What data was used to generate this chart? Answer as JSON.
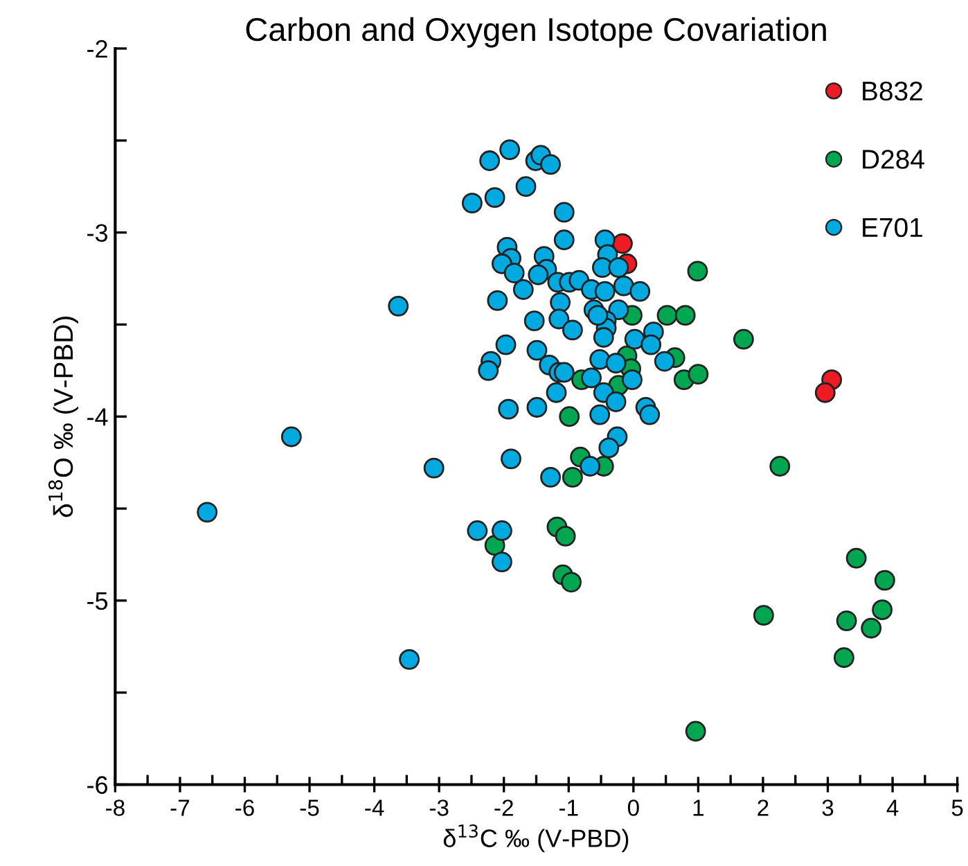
{
  "chart_data": {
    "type": "scatter",
    "title": "Carbon and Oxygen Isotope Covariation",
    "xlabel": "δ$^{13}$C ‰ (V-PBD)",
    "ylabel": "δ$^{18}$O ‰ (V-PBD)",
    "xlim": [
      -8,
      5
    ],
    "ylim": [
      -6,
      -2
    ],
    "xticks": [
      -8,
      -7,
      -6,
      -5,
      -4,
      -3,
      -2,
      -1,
      0,
      1,
      2,
      3,
      4,
      5
    ],
    "yticks": [
      -6,
      -5,
      -4,
      -3,
      -2
    ],
    "grid": false,
    "legend": "top right",
    "marker": "circle",
    "series": [
      {
        "name": "B832",
        "color": "#ed1c24",
        "x": [
          -0.17,
          -0.1,
          3.06,
          2.96
        ],
        "values": [
          -3.06,
          -3.17,
          -3.8,
          -3.87
        ]
      },
      {
        "name": "D284",
        "color": "#00a650",
        "x": [
          0.78,
          1.0,
          2.26,
          3.44,
          3.88,
          3.84,
          3.29,
          3.67,
          3.25,
          2.01,
          0.96,
          0.99,
          0.52,
          0.8,
          1.7,
          -0.02,
          -0.1,
          -0.04,
          0.64,
          -0.8,
          -0.23,
          -0.99,
          -0.82,
          -0.46,
          -0.94,
          -1.18,
          -1.05,
          -2.14,
          -1.09,
          -0.96
        ],
        "values": [
          -3.8,
          -3.77,
          -4.27,
          -4.77,
          -4.89,
          -5.05,
          -5.11,
          -5.15,
          -5.31,
          -5.08,
          -5.71,
          -3.21,
          -3.45,
          -3.45,
          -3.58,
          -3.45,
          -3.67,
          -3.74,
          -3.68,
          -3.8,
          -3.83,
          -4.0,
          -4.22,
          -4.27,
          -4.33,
          -4.6,
          -4.65,
          -4.7,
          -4.86,
          -4.9
        ]
      },
      {
        "name": "E701",
        "color": "#00a9e0",
        "x": [
          -3.63,
          -5.28,
          -3.08,
          -6.58,
          -3.46,
          -2.22,
          -1.91,
          -1.51,
          -1.43,
          -1.28,
          -1.66,
          -2.14,
          -2.49,
          -1.07,
          -1.07,
          -1.95,
          -1.89,
          -2.03,
          -1.84,
          -1.38,
          -1.34,
          -1.47,
          -1.17,
          -0.99,
          -1.7,
          -2.1,
          -1.13,
          -1.53,
          -1.15,
          -0.94,
          -1.97,
          -1.49,
          -0.44,
          -0.4,
          -0.48,
          -0.23,
          -0.84,
          -0.65,
          -0.44,
          -0.15,
          0.1,
          -0.61,
          -0.23,
          -0.42,
          -0.42,
          -0.46,
          -0.55,
          0.02,
          0.31,
          0.27,
          0.48,
          -1.3,
          -1.15,
          -1.07,
          -0.52,
          -0.27,
          -0.65,
          -0.02,
          -1.19,
          -0.46,
          -0.27,
          -1.49,
          -0.52,
          0.19,
          0.25,
          -0.25,
          -0.38,
          -0.67,
          -1.28,
          -2.2,
          -2.24,
          -1.93,
          -1.89,
          -2.41,
          -2.03,
          -2.03
        ],
        "values": [
          -3.4,
          -4.11,
          -4.28,
          -4.52,
          -5.32,
          -2.61,
          -2.55,
          -2.61,
          -2.58,
          -2.63,
          -2.75,
          -2.81,
          -2.84,
          -2.89,
          -3.04,
          -3.08,
          -3.14,
          -3.17,
          -3.22,
          -3.13,
          -3.2,
          -3.23,
          -3.27,
          -3.27,
          -3.31,
          -3.37,
          -3.38,
          -3.48,
          -3.47,
          -3.53,
          -3.61,
          -3.64,
          -3.04,
          -3.12,
          -3.19,
          -3.19,
          -3.26,
          -3.31,
          -3.32,
          -3.29,
          -3.32,
          -3.42,
          -3.42,
          -3.48,
          -3.52,
          -3.57,
          -3.45,
          -3.58,
          -3.54,
          -3.61,
          -3.7,
          -3.72,
          -3.76,
          -3.76,
          -3.69,
          -3.71,
          -3.79,
          -3.8,
          -3.87,
          -3.87,
          -3.92,
          -3.95,
          -3.99,
          -3.95,
          -3.99,
          -4.11,
          -4.17,
          -4.27,
          -4.33,
          -3.7,
          -3.75,
          -3.96,
          -4.23,
          -4.62,
          -4.62,
          -4.79
        ]
      }
    ]
  }
}
